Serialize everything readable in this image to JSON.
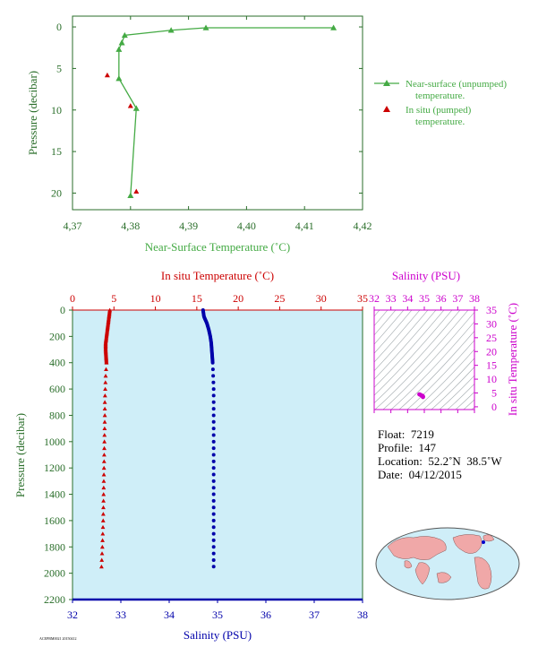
{
  "colors": {
    "green": "#44aa44",
    "green_dark": "#2a6e2a",
    "red": "#cc0000",
    "blue": "#0000aa",
    "magenta": "#cc00cc",
    "panel_bg": "#cfeef8",
    "map_land": "#f0a8a8",
    "map_ocean": "#cfeef8"
  },
  "chart_data": [
    {
      "type": "line",
      "xlabel": "Near-Surface Temperature (˚C)",
      "ylabel": "Pressure (decibar)",
      "xlim": [
        4.37,
        4.42
      ],
      "ylim": [
        22,
        -1.3
      ],
      "x_ticks": [
        4.37,
        4.38,
        4.39,
        4.4,
        4.41,
        4.42
      ],
      "x_tick_labels": [
        "4,37",
        "4,38",
        "4,39",
        "4,40",
        "4,41",
        "4,42"
      ],
      "y_ticks": [
        0,
        5,
        10,
        15,
        20
      ],
      "y_tick_labels": [
        "0",
        "5",
        "10",
        "15",
        "20"
      ],
      "legend_position": "right",
      "series": [
        {
          "name": "Near-surface (unpumped) temperature.",
          "marker": "triangle",
          "color": "#44aa44",
          "x": [
            4.415,
            4.393,
            4.387,
            4.379,
            4.3785,
            4.378,
            4.378,
            4.381,
            4.38
          ],
          "y": [
            0.1,
            0.1,
            0.4,
            1.0,
            1.9,
            2.7,
            6.2,
            9.8,
            20.3
          ]
        },
        {
          "name": "In situ (pumped) temperature.",
          "marker": "triangle",
          "color": "#cc0000",
          "x": [
            4.376,
            4.38,
            4.381
          ],
          "y": [
            5.8,
            9.5,
            19.8
          ]
        }
      ]
    },
    {
      "type": "scatter",
      "xlabel_top": "In situ Temperature (˚C)",
      "xlabel_bottom": "Salinity (PSU)",
      "ylabel": "Pressure (decibar)",
      "top_xlim": [
        0,
        35
      ],
      "bottom_xlim": [
        32,
        38
      ],
      "ylim": [
        2200,
        0
      ],
      "top_ticks": [
        "0",
        "5",
        "10",
        "15",
        "20",
        "25",
        "30",
        "35"
      ],
      "bottom_ticks": [
        "32",
        "33",
        "34",
        "35",
        "36",
        "37",
        "38"
      ],
      "y_ticks": [
        "0",
        "200",
        "400",
        "600",
        "800",
        "1000",
        "1200",
        "1400",
        "1600",
        "1800",
        "2000",
        "2200"
      ],
      "series": [
        {
          "name": "temperature",
          "axis": "top",
          "marker": "triangle",
          "color": "#cc0000",
          "x": [
            4.5,
            4.4,
            4.3,
            4.2,
            4.1,
            4.0,
            4.0,
            4.05,
            4.1,
            4.0,
            3.95,
            3.9,
            3.9,
            3.85,
            3.8,
            3.75,
            3.7,
            3.6,
            3.5
          ],
          "y": [
            0,
            50,
            100,
            150,
            200,
            250,
            300,
            350,
            400,
            500,
            600,
            700,
            800,
            1000,
            1200,
            1400,
            1600,
            1800,
            1950
          ]
        },
        {
          "name": "salinity",
          "axis": "bottom",
          "marker": "dot",
          "color": "#0000aa",
          "x": [
            34.7,
            34.72,
            34.78,
            34.82,
            34.85,
            34.87,
            34.88,
            34.89,
            34.9,
            34.91,
            34.92,
            34.92,
            34.92,
            34.92,
            34.92,
            34.92,
            34.92,
            34.92
          ],
          "y": [
            0,
            50,
            100,
            150,
            200,
            250,
            300,
            350,
            400,
            500,
            600,
            800,
            1000,
            1200,
            1400,
            1600,
            1800,
            1950
          ]
        }
      ]
    },
    {
      "type": "scatter",
      "title": "Salinity (PSU)",
      "ylabel": "In situ Temperature (˚C)",
      "xlim": [
        32,
        38
      ],
      "ylim": [
        -1,
        35
      ],
      "x_ticks": [
        "32",
        "33",
        "34",
        "35",
        "36",
        "37",
        "38"
      ],
      "y_ticks": [
        "0",
        "5",
        "10",
        "15",
        "20",
        "25",
        "30",
        "35"
      ],
      "series": [
        {
          "marker": "dot",
          "color": "#cc00cc",
          "x": [
            34.7,
            34.75,
            34.8,
            34.85,
            34.88,
            34.9,
            34.92,
            34.92,
            34.92
          ],
          "y": [
            4.5,
            4.4,
            4.2,
            4.0,
            4.0,
            3.9,
            3.8,
            3.6,
            3.5
          ]
        }
      ]
    }
  ],
  "profile_info": {
    "float": "Float:  7219",
    "profile": "Profile:  147",
    "location": "Location:  52.2˚N  38.5˚W",
    "date": "Date:  04/12/2015"
  },
  "footer_code": "ACEPBM0021 20150412"
}
